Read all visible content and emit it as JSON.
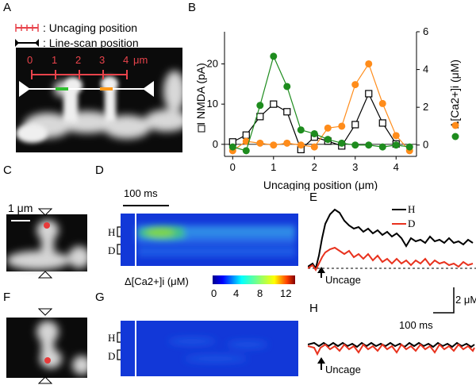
{
  "panels": {
    "A": "A",
    "B": "B",
    "C": "C",
    "D": "D",
    "E": "E",
    "F": "F",
    "G": "G",
    "H": "H"
  },
  "legend_a": {
    "uncaging": ": Uncaging position",
    "linescan": ": Line-scan position"
  },
  "image_a": {
    "scale_labels": [
      "0",
      "1",
      "2",
      "3",
      "4"
    ],
    "scale_unit": "μm"
  },
  "chart_data": {
    "type": "line",
    "x": [
      0,
      0.33,
      0.67,
      1.0,
      1.33,
      1.67,
      2.0,
      2.33,
      2.67,
      3.0,
      3.33,
      3.67,
      4.0,
      4.33
    ],
    "xlabel": "Uncaging position (μm)",
    "xticks": [
      "0",
      "1",
      "2",
      "3",
      "4"
    ],
    "ylabel_left": "I NMDA (pA)",
    "ylabel_right": "Δ[Ca2+]i (μM)",
    "yticks_left": [
      "0",
      "10",
      "20"
    ],
    "yticks_right": [
      "0",
      "2",
      "4",
      "6"
    ],
    "ylim_left": [
      -3,
      28
    ],
    "ylim_right": [
      -0.6,
      6.0
    ],
    "series": [
      {
        "name": "I NMDA",
        "axis": "left",
        "color": "#000000",
        "marker": "open-square",
        "values": [
          0.6,
          2.3,
          6.9,
          10.0,
          8.1,
          -1.3,
          1.8,
          0.8,
          -0.4,
          4.9,
          12.6,
          5.3,
          0.1,
          null
        ]
      },
      {
        "name": "Δ[Ca2+]i H",
        "axis": "right",
        "color": "#ff8c1a",
        "marker": "dot",
        "values": [
          -0.3,
          0.2,
          0.1,
          0.0,
          0.1,
          0.0,
          -0.1,
          0.9,
          1.0,
          3.2,
          4.3,
          2.2,
          0.5,
          -0.3
        ]
      },
      {
        "name": "Δ[Ca2+]i D",
        "axis": "right",
        "color": "#1e8c1e",
        "marker": "dot",
        "values": [
          -0.1,
          -0.3,
          2.1,
          4.7,
          3.1,
          0.8,
          0.6,
          0.3,
          0.1,
          0.0,
          0.0,
          -0.1,
          0.0,
          -0.1
        ]
      }
    ]
  },
  "panel_c": {
    "scale": "1 μm"
  },
  "panel_d": {
    "time_scale": "100 ms",
    "h_label": "H",
    "d_label": "D"
  },
  "colorbar": {
    "label": "Δ[Ca2+]i (μM)",
    "ticks": [
      "0",
      "4",
      "8",
      "12"
    ]
  },
  "panel_e": {
    "legend_h": "H",
    "legend_d": "D",
    "h_color": "#000000",
    "d_color": "#e8321e",
    "uncage": "Uncage",
    "scale_y": "2 μM",
    "scale_x": "100 ms"
  },
  "panel_g": {
    "h_label": "H",
    "d_label": "D"
  },
  "panel_h": {
    "uncage": "Uncage"
  }
}
